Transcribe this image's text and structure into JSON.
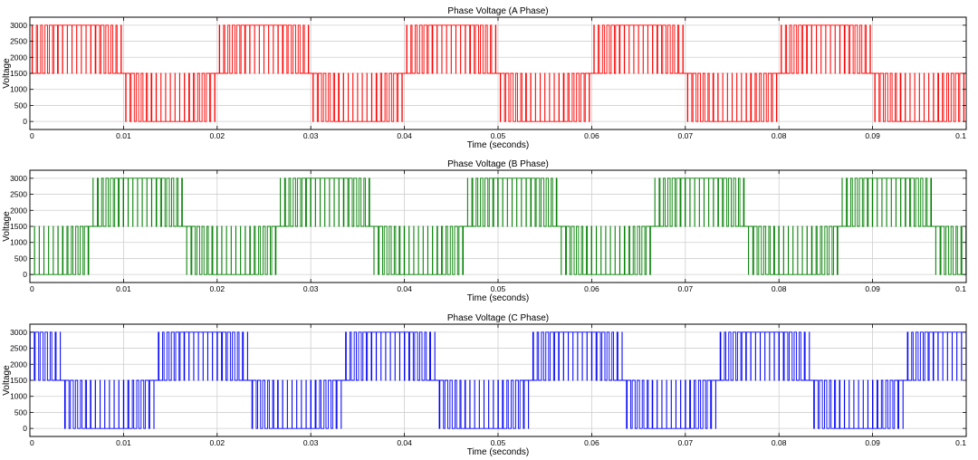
{
  "chart_data": [
    {
      "type": "line",
      "title": "Phase Voltage (A Phase)",
      "xlabel": "Time (seconds)",
      "ylabel": "Voltage",
      "xlim": [
        0,
        0.1
      ],
      "ylim": [
        -250,
        3250
      ],
      "xticks": [
        0,
        0.01,
        0.02,
        0.03,
        0.04,
        0.05,
        0.06,
        0.07,
        0.08,
        0.09,
        0.1
      ],
      "xtick_labels": [
        "0",
        "0.01",
        "0.02",
        "0.03",
        "0.04",
        "0.05",
        "0.06",
        "0.07",
        "0.08",
        "0.09",
        "0.1"
      ],
      "yticks": [
        0,
        500,
        1000,
        1500,
        2000,
        2500,
        3000
      ],
      "ytick_labels": [
        "0",
        "500",
        "1000",
        "1500",
        "2000",
        "2500",
        "3000"
      ],
      "grid": true,
      "color": "#ff0000",
      "series": [
        {
          "name": "Phase A",
          "period_s": 0.02,
          "phase_offset_s": 0.0,
          "switching_period_s": 0.0005,
          "dc_level_V": 1500,
          "high_level_V": 3000,
          "low_level_V": 0
        }
      ]
    },
    {
      "type": "line",
      "title": "Phase Voltage (B Phase)",
      "xlabel": "Time (seconds)",
      "ylabel": "Voltage",
      "xlim": [
        0,
        0.1
      ],
      "ylim": [
        -250,
        3250
      ],
      "xticks": [
        0,
        0.01,
        0.02,
        0.03,
        0.04,
        0.05,
        0.06,
        0.07,
        0.08,
        0.09,
        0.1
      ],
      "xtick_labels": [
        "0",
        "0.01",
        "0.02",
        "0.03",
        "0.04",
        "0.05",
        "0.06",
        "0.07",
        "0.08",
        "0.09",
        "0.1"
      ],
      "yticks": [
        0,
        500,
        1000,
        1500,
        2000,
        2500,
        3000
      ],
      "ytick_labels": [
        "0",
        "500",
        "1000",
        "1500",
        "2000",
        "2500",
        "3000"
      ],
      "grid": true,
      "color": "#008000",
      "series": [
        {
          "name": "Phase B",
          "period_s": 0.02,
          "phase_offset_s": 0.006667,
          "switching_period_s": 0.0005,
          "dc_level_V": 1500,
          "high_level_V": 3000,
          "low_level_V": 0
        }
      ]
    },
    {
      "type": "line",
      "title": "Phase Voltage (C Phase)",
      "xlabel": "Time (seconds)",
      "ylabel": "Voltage",
      "xlim": [
        0,
        0.1
      ],
      "ylim": [
        -250,
        3250
      ],
      "xticks": [
        0,
        0.01,
        0.02,
        0.03,
        0.04,
        0.05,
        0.06,
        0.07,
        0.08,
        0.09,
        0.1
      ],
      "xtick_labels": [
        "0",
        "0.01",
        "0.02",
        "0.03",
        "0.04",
        "0.05",
        "0.06",
        "0.07",
        "0.08",
        "0.09",
        "0.1"
      ],
      "yticks": [
        0,
        500,
        1000,
        1500,
        2000,
        2500,
        3000
      ],
      "ytick_labels": [
        "0",
        "500",
        "1000",
        "1500",
        "2000",
        "2500",
        "3000"
      ],
      "grid": true,
      "color": "#0000ff",
      "series": [
        {
          "name": "Phase C",
          "period_s": 0.02,
          "phase_offset_s": -0.006667,
          "switching_period_s": 0.0005,
          "dc_level_V": 1500,
          "high_level_V": 3000,
          "low_level_V": 0
        }
      ]
    }
  ]
}
